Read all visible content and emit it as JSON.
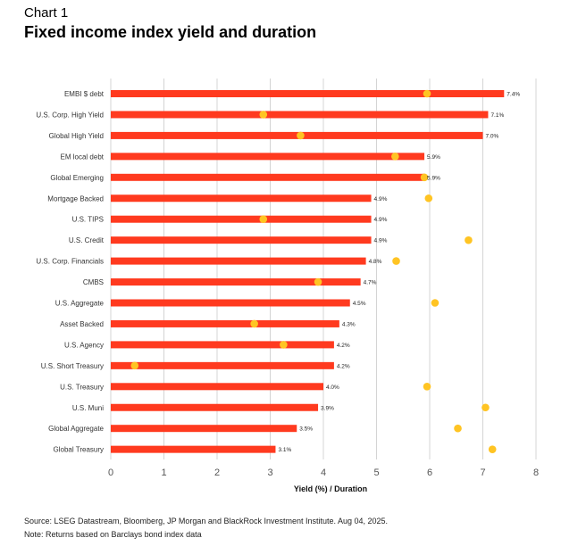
{
  "header": {
    "kicker": "Chart 1",
    "title": "Fixed income index yield and duration"
  },
  "footer": {
    "source": "Source: LSEG Datastream, Bloomberg, JP Morgan and BlackRock Investment Institute. Aug 04, 2025.",
    "note": "Note: Returns based on Barclays bond index data"
  },
  "chart_data": {
    "type": "bar",
    "orientation": "horizontal",
    "title": "Fixed income index yield and duration",
    "xlabel": "Yield (%) / Duration",
    "xlim": [
      0,
      8
    ],
    "xticks": [
      "0",
      "1",
      "2",
      "3",
      "4",
      "5",
      "6",
      "7",
      "8"
    ],
    "grid": "vertical",
    "colors": {
      "bar": "#ff3a1f",
      "dot": "#ffc423",
      "grid": "#d4d4d4"
    },
    "categories": [
      "EMBI $ debt",
      "U.S. Corp. High Yield",
      "Global High Yield",
      "EM local debt",
      "Global Emerging",
      "Mortgage Backed",
      "U.S. TIPS",
      "U.S. Credit",
      "U.S. Corp. Financials",
      "CMBS",
      "U.S. Aggregate",
      "Asset Backed",
      "U.S. Agency",
      "U.S. Short Treasury",
      "U.S. Treasury",
      "U.S. Muni",
      "Global Aggregate",
      "Global Treasury"
    ],
    "series": [
      {
        "kind": "bar",
        "values": [
          7.4,
          7.1,
          7.0,
          5.9,
          5.9,
          4.9,
          4.9,
          4.9,
          4.8,
          4.7,
          4.5,
          4.3,
          4.2,
          4.2,
          4.0,
          3.9,
          3.5,
          3.1
        ],
        "labels": [
          "7.4%",
          "7.1%",
          "7.0%",
          "5.9%",
          "5.9%",
          "4.9%",
          "4.9%",
          "4.9%",
          "4.8%",
          "4.7%",
          "4.5%",
          "4.3%",
          "4.2%",
          "4.2%",
          "4.0%",
          "3.9%",
          "3.5%",
          "3.1%"
        ]
      },
      {
        "kind": "dot",
        "values": [
          5.95,
          2.87,
          3.57,
          5.35,
          5.9,
          5.98,
          2.87,
          6.73,
          5.37,
          3.9,
          6.1,
          2.7,
          3.25,
          0.45,
          5.95,
          7.05,
          6.53,
          7.18
        ]
      }
    ]
  }
}
